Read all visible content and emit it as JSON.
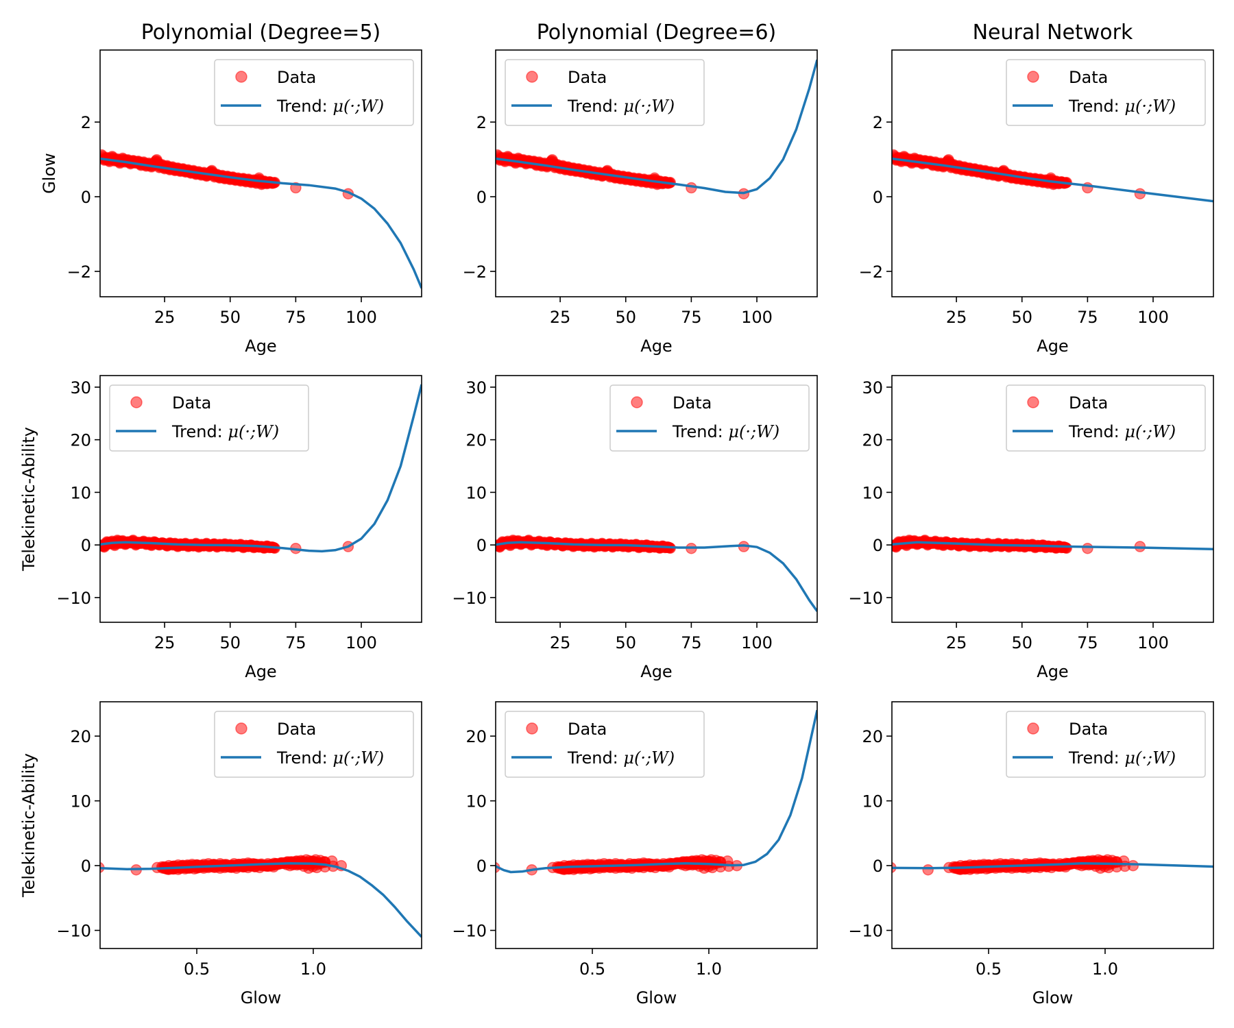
{
  "figure": {
    "legend": {
      "data_label": "Data",
      "trend_prefix": "Trend: ",
      "trend_math": "μ(·;W)"
    },
    "colors": {
      "marker": "#ff0000",
      "line": "#1f77b4",
      "axis": "#000000",
      "legend_border": "#cccccc"
    }
  },
  "chart_data": [
    {
      "type": "scatter",
      "row": 0,
      "col": 0,
      "title": "Polynomial (Degree=5)",
      "xlabel": "Age",
      "ylabel": "Glow",
      "xvar": "age",
      "yvar": "glow",
      "xlim": [
        0.4,
        123
      ],
      "ylim": [
        -2.68,
        3.93
      ],
      "xticks": [
        25,
        50,
        75,
        100
      ],
      "yticks": [
        -2,
        0,
        2
      ],
      "xtick_labels": [
        "25",
        "50",
        "75",
        "100"
      ],
      "ytick_labels": [
        "−2",
        "0",
        "2"
      ],
      "legend": "top-right",
      "trend": [
        [
          0.4,
          1.02
        ],
        [
          10,
          0.93
        ],
        [
          20,
          0.82
        ],
        [
          30,
          0.72
        ],
        [
          40,
          0.62
        ],
        [
          50,
          0.52
        ],
        [
          60,
          0.43
        ],
        [
          70,
          0.36
        ],
        [
          80,
          0.31
        ],
        [
          90,
          0.22
        ],
        [
          95,
          0.12
        ],
        [
          100,
          -0.05
        ],
        [
          105,
          -0.32
        ],
        [
          110,
          -0.72
        ],
        [
          115,
          -1.24
        ],
        [
          120,
          -1.95
        ],
        [
          123,
          -2.45
        ]
      ]
    },
    {
      "type": "scatter",
      "row": 0,
      "col": 1,
      "title": "Polynomial (Degree=6)",
      "xlabel": "Age",
      "ylabel": "",
      "xvar": "age",
      "yvar": "glow",
      "xlim": [
        0.4,
        123
      ],
      "ylim": [
        -2.68,
        3.93
      ],
      "xticks": [
        25,
        50,
        75,
        100
      ],
      "yticks": [
        -2,
        0,
        2
      ],
      "xtick_labels": [
        "25",
        "50",
        "75",
        "100"
      ],
      "ytick_labels": [
        "−2",
        "0",
        "2"
      ],
      "legend": "top-left",
      "trend": [
        [
          0.4,
          1.02
        ],
        [
          10,
          0.93
        ],
        [
          20,
          0.83
        ],
        [
          30,
          0.72
        ],
        [
          40,
          0.62
        ],
        [
          50,
          0.52
        ],
        [
          60,
          0.42
        ],
        [
          70,
          0.33
        ],
        [
          80,
          0.23
        ],
        [
          88,
          0.13
        ],
        [
          95,
          0.1
        ],
        [
          100,
          0.2
        ],
        [
          105,
          0.5
        ],
        [
          110,
          1.0
        ],
        [
          115,
          1.8
        ],
        [
          120,
          2.9
        ],
        [
          123,
          3.67
        ]
      ]
    },
    {
      "type": "scatter",
      "row": 0,
      "col": 2,
      "title": "Neural Network",
      "xlabel": "Age",
      "ylabel": "",
      "xvar": "age",
      "yvar": "glow",
      "xlim": [
        0.4,
        123
      ],
      "ylim": [
        -2.68,
        3.93
      ],
      "xticks": [
        25,
        50,
        75,
        100
      ],
      "yticks": [
        -2,
        0,
        2
      ],
      "xtick_labels": [
        "25",
        "50",
        "75",
        "100"
      ],
      "ytick_labels": [
        "−2",
        "0",
        "2"
      ],
      "legend": "top-right",
      "trend": [
        [
          0.4,
          1.02
        ],
        [
          20,
          0.84
        ],
        [
          40,
          0.63
        ],
        [
          50,
          0.52
        ],
        [
          60,
          0.42
        ],
        [
          67,
          0.36
        ],
        [
          75,
          0.3
        ],
        [
          95,
          0.12
        ],
        [
          123,
          -0.12
        ]
      ]
    },
    {
      "type": "scatter",
      "row": 1,
      "col": 0,
      "title": "",
      "xlabel": "Age",
      "ylabel": "Telekinetic-Ability",
      "xvar": "age",
      "yvar": "tk",
      "xlim": [
        0.4,
        123
      ],
      "ylim": [
        -14.7,
        32.2
      ],
      "xticks": [
        25,
        50,
        75,
        100
      ],
      "yticks": [
        -10,
        0,
        10,
        20,
        30
      ],
      "xtick_labels": [
        "25",
        "50",
        "75",
        "100"
      ],
      "ytick_labels": [
        "−10",
        "0",
        "10",
        "20",
        "30"
      ],
      "legend": "top-left",
      "trend": [
        [
          0.4,
          0.1
        ],
        [
          5,
          0.4
        ],
        [
          10,
          0.5
        ],
        [
          20,
          0.35
        ],
        [
          30,
          0.1
        ],
        [
          40,
          0.0
        ],
        [
          50,
          -0.05
        ],
        [
          60,
          -0.2
        ],
        [
          70,
          -0.6
        ],
        [
          80,
          -1.1
        ],
        [
          85,
          -1.2
        ],
        [
          90,
          -1.0
        ],
        [
          95,
          -0.3
        ],
        [
          100,
          1.2
        ],
        [
          105,
          4.0
        ],
        [
          110,
          8.5
        ],
        [
          115,
          15.0
        ],
        [
          120,
          24.5
        ],
        [
          123,
          30.5
        ]
      ]
    },
    {
      "type": "scatter",
      "row": 1,
      "col": 1,
      "title": "",
      "xlabel": "Age",
      "ylabel": "",
      "xvar": "age",
      "yvar": "tk",
      "xlim": [
        0.4,
        123
      ],
      "ylim": [
        -14.7,
        32.2
      ],
      "xticks": [
        25,
        50,
        75,
        100
      ],
      "yticks": [
        -10,
        0,
        10,
        20,
        30
      ],
      "xtick_labels": [
        "25",
        "50",
        "75",
        "100"
      ],
      "ytick_labels": [
        "−10",
        "0",
        "10",
        "20",
        "30"
      ],
      "legend": "top-right",
      "trend": [
        [
          0.4,
          0.05
        ],
        [
          5,
          0.4
        ],
        [
          10,
          0.5
        ],
        [
          20,
          0.35
        ],
        [
          30,
          0.1
        ],
        [
          40,
          0.0
        ],
        [
          50,
          -0.05
        ],
        [
          60,
          -0.25
        ],
        [
          70,
          -0.5
        ],
        [
          80,
          -0.5
        ],
        [
          90,
          -0.2
        ],
        [
          95,
          -0.1
        ],
        [
          100,
          -0.4
        ],
        [
          105,
          -1.5
        ],
        [
          110,
          -3.5
        ],
        [
          115,
          -6.5
        ],
        [
          120,
          -10.5
        ],
        [
          123,
          -12.6
        ]
      ]
    },
    {
      "type": "scatter",
      "row": 1,
      "col": 2,
      "title": "",
      "xlabel": "Age",
      "ylabel": "",
      "xvar": "age",
      "yvar": "tk",
      "xlim": [
        0.4,
        123
      ],
      "ylim": [
        -14.7,
        32.2
      ],
      "xticks": [
        25,
        50,
        75,
        100
      ],
      "yticks": [
        -10,
        0,
        10,
        20,
        30
      ],
      "xtick_labels": [
        "25",
        "50",
        "75",
        "100"
      ],
      "ytick_labels": [
        "−10",
        "0",
        "10",
        "20",
        "30"
      ],
      "legend": "top-right",
      "trend": [
        [
          0.4,
          0.1
        ],
        [
          10,
          0.5
        ],
        [
          20,
          0.35
        ],
        [
          40,
          0.0
        ],
        [
          60,
          -0.2
        ],
        [
          67,
          -0.3
        ],
        [
          95,
          -0.5
        ],
        [
          123,
          -0.8
        ]
      ]
    },
    {
      "type": "scatter",
      "row": 2,
      "col": 0,
      "title": "",
      "xlabel": "Glow",
      "ylabel": "Telekinetic-Ability",
      "xvar": "glow",
      "yvar": "tk",
      "xlim": [
        0.085,
        1.465
      ],
      "ylim": [
        -12.8,
        25.3
      ],
      "xticks": [
        0.5,
        1.0
      ],
      "yticks": [
        -10,
        0,
        10,
        20
      ],
      "xtick_labels": [
        "0.5",
        "1.0"
      ],
      "ytick_labels": [
        "−10",
        "0",
        "10",
        "20"
      ],
      "legend": "top-right",
      "trend": [
        [
          0.085,
          -0.4
        ],
        [
          0.2,
          -0.55
        ],
        [
          0.3,
          -0.5
        ],
        [
          0.4,
          -0.35
        ],
        [
          0.5,
          -0.2
        ],
        [
          0.6,
          -0.05
        ],
        [
          0.7,
          0.1
        ],
        [
          0.8,
          0.25
        ],
        [
          0.9,
          0.35
        ],
        [
          1.0,
          0.3
        ],
        [
          1.05,
          0.15
        ],
        [
          1.1,
          -0.2
        ],
        [
          1.15,
          -0.8
        ],
        [
          1.2,
          -1.7
        ],
        [
          1.25,
          -3.0
        ],
        [
          1.3,
          -4.5
        ],
        [
          1.35,
          -6.4
        ],
        [
          1.4,
          -8.5
        ],
        [
          1.465,
          -11.0
        ]
      ]
    },
    {
      "type": "scatter",
      "row": 2,
      "col": 1,
      "title": "",
      "xlabel": "Glow",
      "ylabel": "",
      "xvar": "glow",
      "yvar": "tk",
      "xlim": [
        0.085,
        1.465
      ],
      "ylim": [
        -12.8,
        25.3
      ],
      "xticks": [
        0.5,
        1.0
      ],
      "yticks": [
        -10,
        0,
        10,
        20
      ],
      "xtick_labels": [
        "0.5",
        "1.0"
      ],
      "ytick_labels": [
        "−10",
        "0",
        "10",
        "20"
      ],
      "legend": "top-left",
      "trend": [
        [
          0.085,
          -0.1
        ],
        [
          0.12,
          -0.7
        ],
        [
          0.15,
          -1.0
        ],
        [
          0.2,
          -0.9
        ],
        [
          0.25,
          -0.6
        ],
        [
          0.3,
          -0.4
        ],
        [
          0.4,
          -0.2
        ],
        [
          0.5,
          -0.1
        ],
        [
          0.6,
          0.0
        ],
        [
          0.7,
          0.1
        ],
        [
          0.8,
          0.25
        ],
        [
          0.9,
          0.35
        ],
        [
          1.0,
          0.25
        ],
        [
          1.1,
          0.05
        ],
        [
          1.15,
          0.1
        ],
        [
          1.2,
          0.6
        ],
        [
          1.25,
          1.8
        ],
        [
          1.3,
          4.0
        ],
        [
          1.35,
          7.8
        ],
        [
          1.4,
          13.5
        ],
        [
          1.465,
          24.0
        ]
      ]
    },
    {
      "type": "scatter",
      "row": 2,
      "col": 2,
      "title": "",
      "xlabel": "Glow",
      "ylabel": "",
      "xvar": "glow",
      "yvar": "tk",
      "xlim": [
        0.085,
        1.465
      ],
      "ylim": [
        -12.8,
        25.3
      ],
      "xticks": [
        0.5,
        1.0
      ],
      "yticks": [
        -10,
        0,
        10,
        20
      ],
      "xtick_labels": [
        "0.5",
        "1.0"
      ],
      "ytick_labels": [
        "−10",
        "0",
        "10",
        "20"
      ],
      "legend": "top-right",
      "trend": [
        [
          0.085,
          -0.35
        ],
        [
          0.25,
          -0.4
        ],
        [
          0.4,
          -0.3
        ],
        [
          0.6,
          -0.05
        ],
        [
          0.8,
          0.2
        ],
        [
          0.9,
          0.35
        ],
        [
          1.0,
          0.3
        ],
        [
          1.15,
          0.2
        ],
        [
          1.465,
          -0.15
        ]
      ]
    }
  ],
  "observations": [
    {
      "age": 1,
      "glow": 1.12,
      "tk": 0.0
    },
    {
      "age": 2,
      "glow": 0.98,
      "tk": -0.4
    },
    {
      "age": 3,
      "glow": 1.05,
      "tk": 0.6
    },
    {
      "age": 4,
      "glow": 0.94,
      "tk": 0.2
    },
    {
      "age": 5,
      "glow": 1.08,
      "tk": 0.7
    },
    {
      "age": 6,
      "glow": 0.96,
      "tk": -0.1
    },
    {
      "age": 7,
      "glow": 1.01,
      "tk": 0.9
    },
    {
      "age": 8,
      "glow": 0.9,
      "tk": 0.3
    },
    {
      "age": 9,
      "glow": 1.03,
      "tk": 0.8
    },
    {
      "age": 10,
      "glow": 0.93,
      "tk": 0.1
    },
    {
      "age": 11,
      "glow": 0.99,
      "tk": 0.6
    },
    {
      "age": 12,
      "glow": 0.88,
      "tk": 0.4
    },
    {
      "age": 13,
      "glow": 0.97,
      "tk": 0.9
    },
    {
      "age": 14,
      "glow": 0.9,
      "tk": 0.0
    },
    {
      "age": 15,
      "glow": 0.95,
      "tk": 0.5
    },
    {
      "age": 16,
      "glow": 0.84,
      "tk": 0.3
    },
    {
      "age": 17,
      "glow": 0.93,
      "tk": 0.7
    },
    {
      "age": 18,
      "glow": 0.82,
      "tk": 0.1
    },
    {
      "age": 19,
      "glow": 0.9,
      "tk": 0.5
    },
    {
      "age": 20,
      "glow": 0.8,
      "tk": -0.1
    },
    {
      "age": 21,
      "glow": 0.89,
      "tk": 0.6
    },
    {
      "age": 22,
      "glow": 0.99,
      "tk": 0.3
    },
    {
      "age": 23,
      "glow": 0.78,
      "tk": 0.0
    },
    {
      "age": 24,
      "glow": 0.86,
      "tk": 0.4
    },
    {
      "age": 25,
      "glow": 0.75,
      "tk": 0.2
    },
    {
      "age": 26,
      "glow": 0.83,
      "tk": -0.2
    },
    {
      "age": 27,
      "glow": 0.72,
      "tk": 0.4
    },
    {
      "age": 28,
      "glow": 0.8,
      "tk": 0.0
    },
    {
      "age": 29,
      "glow": 0.7,
      "tk": 0.3
    },
    {
      "age": 30,
      "glow": 0.77,
      "tk": -0.3
    },
    {
      "age": 31,
      "glow": 0.68,
      "tk": 0.2
    },
    {
      "age": 32,
      "glow": 0.75,
      "tk": -0.1
    },
    {
      "age": 33,
      "glow": 0.66,
      "tk": 0.3
    },
    {
      "age": 34,
      "glow": 0.72,
      "tk": -0.3
    },
    {
      "age": 35,
      "glow": 0.63,
      "tk": 0.1
    },
    {
      "age": 36,
      "glow": 0.7,
      "tk": -0.2
    },
    {
      "age": 37,
      "glow": 0.6,
      "tk": 0.3
    },
    {
      "age": 38,
      "glow": 0.67,
      "tk": -0.4
    },
    {
      "age": 39,
      "glow": 0.58,
      "tk": 0.1
    },
    {
      "age": 40,
      "glow": 0.65,
      "tk": -0.2
    },
    {
      "age": 41,
      "glow": 0.55,
      "tk": 0.3
    },
    {
      "age": 42,
      "glow": 0.62,
      "tk": -0.3
    },
    {
      "age": 43,
      "glow": 0.7,
      "tk": 0.0
    },
    {
      "age": 44,
      "glow": 0.53,
      "tk": 0.2
    },
    {
      "age": 45,
      "glow": 0.6,
      "tk": -0.4
    },
    {
      "age": 46,
      "glow": 0.5,
      "tk": 0.1
    },
    {
      "age": 47,
      "glow": 0.57,
      "tk": -0.2
    },
    {
      "age": 48,
      "glow": 0.48,
      "tk": 0.2
    },
    {
      "age": 49,
      "glow": 0.55,
      "tk": -0.3
    },
    {
      "age": 50,
      "glow": 0.46,
      "tk": 0.1
    },
    {
      "age": 51,
      "glow": 0.53,
      "tk": -0.4
    },
    {
      "age": 52,
      "glow": 0.44,
      "tk": 0.0
    },
    {
      "age": 53,
      "glow": 0.5,
      "tk": -0.2
    },
    {
      "age": 54,
      "glow": 0.42,
      "tk": 0.1
    },
    {
      "age": 55,
      "glow": 0.49,
      "tk": -0.5
    },
    {
      "age": 56,
      "glow": 0.4,
      "tk": -0.1
    },
    {
      "age": 57,
      "glow": 0.47,
      "tk": -0.3
    },
    {
      "age": 58,
      "glow": 0.38,
      "tk": 0.0
    },
    {
      "age": 59,
      "glow": 0.45,
      "tk": -0.5
    },
    {
      "age": 60,
      "glow": 0.36,
      "tk": -0.2
    },
    {
      "age": 61,
      "glow": 0.5,
      "tk": -0.4
    },
    {
      "age": 62,
      "glow": 0.33,
      "tk": -0.3
    },
    {
      "age": 63,
      "glow": 0.42,
      "tk": -0.6
    },
    {
      "age": 64,
      "glow": 0.35,
      "tk": -0.2
    },
    {
      "age": 65,
      "glow": 0.4,
      "tk": -0.5
    },
    {
      "age": 66,
      "glow": 0.36,
      "tk": -0.4
    },
    {
      "age": 67,
      "glow": 0.38,
      "tk": -0.6
    },
    {
      "age": 75,
      "glow": 0.24,
      "tk": -0.65
    },
    {
      "age": 95,
      "glow": 0.08,
      "tk": -0.3
    }
  ]
}
